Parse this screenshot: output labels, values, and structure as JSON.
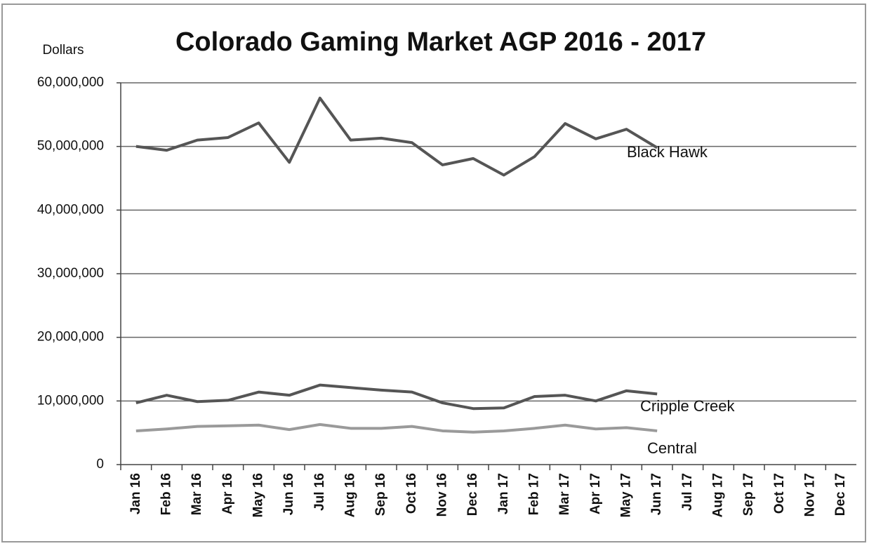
{
  "chart_data": {
    "type": "line",
    "title": "Colorado Gaming Market AGP 2016 - 2017",
    "y_label": "Dollars",
    "categories": [
      "Jan 16",
      "Feb 16",
      "Mar 16",
      "Apr 16",
      "May 16",
      "Jun 16",
      "Jul 16",
      "Aug 16",
      "Sep 16",
      "Oct 16",
      "Nov 16",
      "Dec 16",
      "Jan 17",
      "Feb 17",
      "Mar 17",
      "Apr 17",
      "May 17",
      "Jun 17",
      "Jul 17",
      "Aug 17",
      "Sep 17",
      "Oct 17",
      "Nov 17",
      "Dec 17"
    ],
    "series": [
      {
        "name": "Black Hawk",
        "color": "#555555",
        "values": [
          50000000,
          49400000,
          51000000,
          51400000,
          53700000,
          47500000,
          57600000,
          51000000,
          51300000,
          50600000,
          47100000,
          48100000,
          45500000,
          48400000,
          53600000,
          51200000,
          52700000,
          49800000,
          null,
          null,
          null,
          null,
          null,
          null
        ]
      },
      {
        "name": "Cripple Creek",
        "color": "#555555",
        "values": [
          9700000,
          10900000,
          9900000,
          10100000,
          11400000,
          10900000,
          12500000,
          12100000,
          11700000,
          11400000,
          9700000,
          8800000,
          8900000,
          10700000,
          10900000,
          10000000,
          11600000,
          11100000,
          null,
          null,
          null,
          null,
          null,
          null
        ]
      },
      {
        "name": "Central",
        "color": "#9a9a9a",
        "values": [
          5300000,
          5600000,
          6000000,
          6100000,
          6200000,
          5500000,
          6300000,
          5700000,
          5700000,
          6000000,
          5300000,
          5100000,
          5300000,
          5700000,
          6200000,
          5600000,
          5800000,
          5300000,
          null,
          null,
          null,
          null,
          null,
          null
        ]
      }
    ],
    "ylim": [
      0,
      60000000
    ],
    "yticks": [
      0,
      {
        "value": 10000000,
        "label": "10,000,000"
      },
      {
        "value": 20000000,
        "label": "20,000,000"
      },
      {
        "value": 30000000,
        "label": "30,000,000"
      },
      {
        "value": 40000000,
        "label": "40,000,000"
      },
      {
        "value": 50000000,
        "label": "50,000,000"
      },
      {
        "value": 60000000,
        "label": "60,000,000"
      }
    ],
    "grid": true
  }
}
